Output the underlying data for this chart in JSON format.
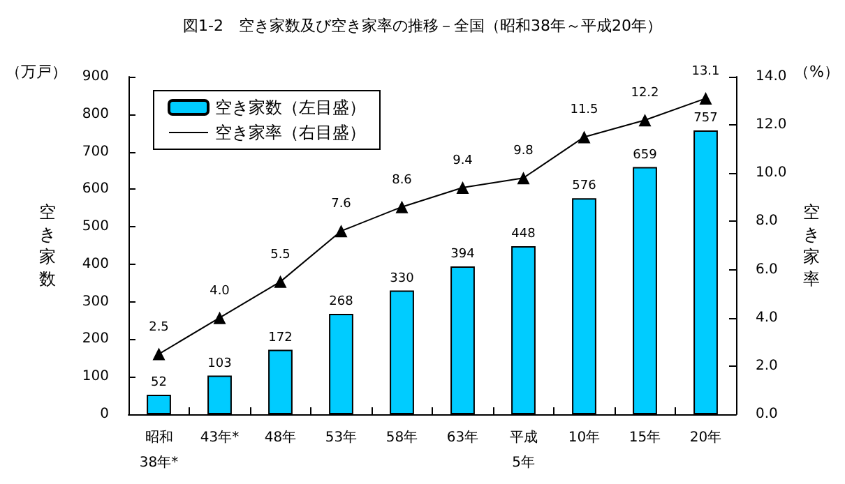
{
  "chart_data": {
    "type": "bar",
    "title": "図1-2　空き家数及び空き家率の推移－全国（昭和38年～平成20年）",
    "categories": [
      "昭和\n38年*",
      "43年*",
      "48年",
      "53年",
      "58年",
      "63年",
      "平成\n5年",
      "10年",
      "15年",
      "20年"
    ],
    "series": [
      {
        "name": "空き家数（左目盛）",
        "color": "#00ccff",
        "values": [
          52,
          103,
          172,
          268,
          330,
          394,
          448,
          576,
          659,
          757
        ],
        "value_labels": [
          "52",
          "103",
          "172",
          "268",
          "330",
          "394",
          "448",
          "576",
          "659",
          "757"
        ]
      },
      {
        "name": "空き家率（右目盛）",
        "type": "line",
        "axis": "y2",
        "color": "#000000",
        "values": [
          2.5,
          4.0,
          5.5,
          7.6,
          8.6,
          9.4,
          9.8,
          11.5,
          12.2,
          13.1
        ],
        "value_labels": [
          "2.5",
          "4.0",
          "5.5",
          "7.6",
          "8.6",
          "9.4",
          "9.8",
          "11.5",
          "12.2",
          "13.1"
        ]
      }
    ],
    "ylabel": "空き家数",
    "y2label": "空き家率",
    "annotations": [
      "（万戸）",
      "（%）"
    ],
    "ylim": [
      0,
      900
    ],
    "yticks": [
      0,
      100,
      200,
      300,
      400,
      500,
      600,
      700,
      800,
      900
    ],
    "y2lim": [
      0,
      14
    ],
    "y2ticks": [
      {
        "value": 0,
        "label": "0.0"
      },
      {
        "value": 2,
        "label": "2.0"
      },
      {
        "value": 4,
        "label": "4.0"
      },
      {
        "value": 6,
        "label": "6.0"
      },
      {
        "value": 8,
        "label": "8.0"
      },
      {
        "value": 10,
        "label": "10.0"
      },
      {
        "value": 12,
        "label": "12.0"
      },
      {
        "value": 14,
        "label": "14.0"
      }
    ],
    "marker": "triangle",
    "grid": false,
    "legend": "top left"
  }
}
